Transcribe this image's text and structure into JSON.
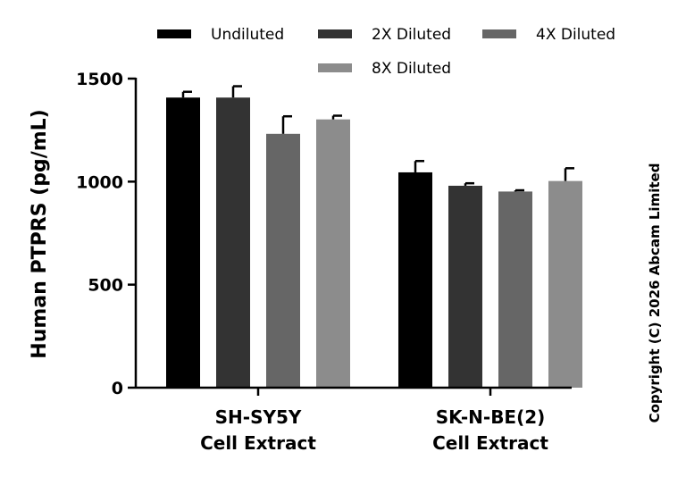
{
  "chart_data": {
    "type": "bar",
    "categories": [
      [
        "SH-SY5Y",
        "Cell Extract"
      ],
      [
        "SK-N-BE(2)",
        "Cell Extract"
      ]
    ],
    "series": [
      {
        "name": "Undiluted",
        "color": "#000000",
        "values": [
          1408,
          1045
        ],
        "errors": [
          28,
          55
        ]
      },
      {
        "name": "2X Diluted",
        "color": "#333333",
        "values": [
          1408,
          980
        ],
        "errors": [
          55,
          12
        ]
      },
      {
        "name": "4X Diluted",
        "color": "#666666",
        "values": [
          1232,
          952
        ],
        "errors": [
          85,
          6
        ]
      },
      {
        "name": "8X Diluted",
        "color": "#8c8c8c",
        "values": [
          1302,
          1003
        ],
        "errors": [
          18,
          62
        ]
      }
    ],
    "ylabel": "Human PTPRS (pg/mL)",
    "ylim": [
      0,
      1500
    ],
    "yticks": [
      0,
      500,
      1000,
      1500
    ],
    "grid": false,
    "legend_position": "top"
  },
  "copyright": "Copyright (C) 2026 Abcam Limited"
}
